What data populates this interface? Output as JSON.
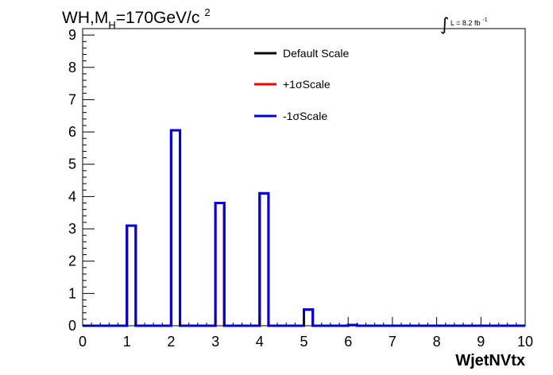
{
  "chart_data": {
    "type": "histogram",
    "title": {
      "prefix": "WH,M",
      "subscript": "H",
      "suffix": "=170GeV/c",
      "superscript": "2"
    },
    "lumi": {
      "integral_symbol": "∫",
      "text": "L = 8.2 fb",
      "superscript": "-1"
    },
    "xlabel": "WjetNVtx",
    "ylabel": "",
    "xlim": [
      0,
      10
    ],
    "ylim": [
      0,
      9.2
    ],
    "xticks": [
      0,
      1,
      2,
      3,
      4,
      5,
      6,
      7,
      8,
      9,
      10
    ],
    "yticks": [
      0,
      1,
      2,
      3,
      4,
      5,
      6,
      7,
      8,
      9
    ],
    "bin_width": 0.2,
    "bin_start": 0,
    "values": [
      0,
      0,
      0,
      0,
      0,
      3.1,
      0,
      0,
      0,
      0,
      6.05,
      0,
      0,
      0,
      0,
      3.8,
      0,
      0,
      0,
      0,
      4.1,
      0,
      0,
      0,
      0,
      0.5,
      0,
      0,
      0,
      0,
      0.02,
      0,
      0,
      0,
      0,
      0,
      0,
      0,
      0,
      0,
      0,
      0,
      0,
      0,
      0,
      0,
      0,
      0,
      0,
      0
    ],
    "series": [
      {
        "name": "Default Scale",
        "color": "#000000"
      },
      {
        "name": "+1σScale",
        "color": "#ff0000"
      },
      {
        "name": "-1σScale",
        "color": "#0000dd"
      }
    ],
    "legend_position": "top-center",
    "grid": false
  }
}
